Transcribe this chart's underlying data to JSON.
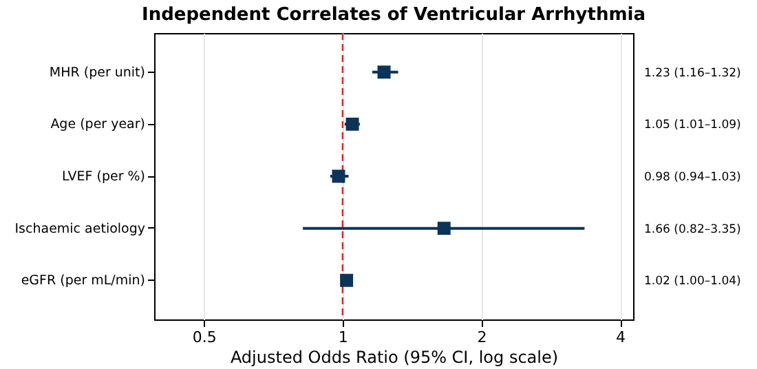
{
  "chart_data": {
    "type": "scatter",
    "orientation": "horizontal",
    "title": "Independent Correlates of Ventricular Arrhythmia",
    "xlabel": "Adjusted Odds Ratio (95% CI, log scale)",
    "categories": [
      "MHR (per unit)",
      "Age (per year)",
      "LVEF (per %)",
      "Ischaemic aetiology",
      "eGFR (per mL/min)"
    ],
    "values": [
      1.23,
      1.05,
      0.98,
      1.66,
      1.02
    ],
    "errors": [
      [
        1.16,
        1.32
      ],
      [
        1.01,
        1.09
      ],
      [
        0.94,
        1.03
      ],
      [
        0.82,
        3.35
      ],
      [
        1.0,
        1.04
      ]
    ],
    "value_labels": [
      "1.23 (1.16–1.32)",
      "1.05 (1.01–1.09)",
      "0.98 (0.94–1.03)",
      "1.66 (0.82–3.35)",
      "1.02 (1.00–1.04)"
    ],
    "color": "#0d3358",
    "marker": "square",
    "log": "x",
    "xlim": [
      0.39,
      4.27
    ],
    "xticks": [
      0.5,
      1,
      2,
      4
    ],
    "grid": "x",
    "ref_lines": [
      {
        "axis": "x",
        "value": 1,
        "color": "#d62728",
        "line_style": "dashed"
      }
    ]
  }
}
